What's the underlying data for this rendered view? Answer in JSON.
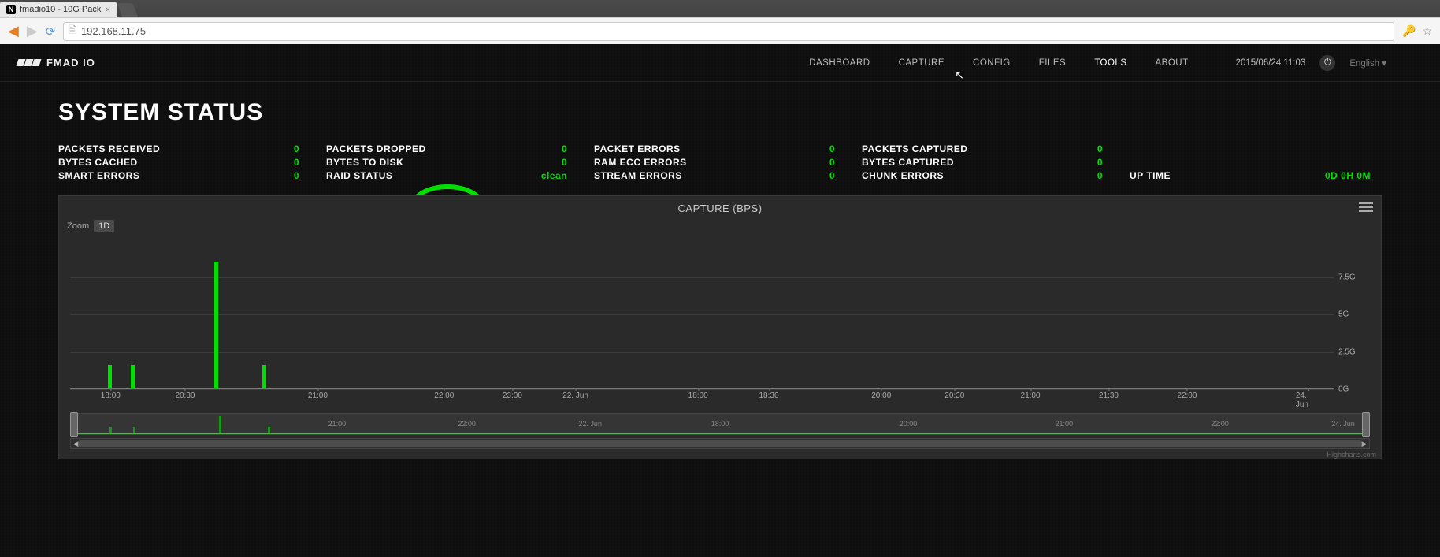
{
  "browser": {
    "tab_title": "fmadio10 - 10G Pack",
    "url": "192.168.11.75"
  },
  "brand": "FMAD IO",
  "nav": {
    "items": [
      "DASHBOARD",
      "CAPTURE",
      "CONFIG",
      "FILES",
      "TOOLS",
      "ABOUT"
    ],
    "active": "TOOLS"
  },
  "clock": "2015/06/24 11:03",
  "language": "English",
  "page_title": "SYSTEM STATUS",
  "stats_rows": [
    [
      {
        "label": "PACKETS RECEIVED",
        "value": "0"
      },
      {
        "label": "PACKETS DROPPED",
        "value": "0"
      },
      {
        "label": "PACKET ERRORS",
        "value": "0"
      },
      {
        "label": "PACKETS CAPTURED",
        "value": "0"
      },
      {
        "label": "",
        "value": ""
      }
    ],
    [
      {
        "label": "BYTES CACHED",
        "value": "0"
      },
      {
        "label": "BYTES TO DISK",
        "value": "0"
      },
      {
        "label": "RAM ECC ERRORS",
        "value": "0"
      },
      {
        "label": "BYTES CAPTURED",
        "value": "0"
      },
      {
        "label": "",
        "value": ""
      }
    ],
    [
      {
        "label": "SMART ERRORS",
        "value": "0"
      },
      {
        "label": "RAID STATUS",
        "value": "clean"
      },
      {
        "label": "STREAM ERRORS",
        "value": "0"
      },
      {
        "label": "CHUNK ERRORS",
        "value": "0"
      },
      {
        "label": "UP TIME",
        "value": "0D 0H 0M"
      }
    ]
  ],
  "chart": {
    "title": "CAPTURE (BPS)",
    "zoom_label": "Zoom",
    "zoom_selected": "1D",
    "ylim": [
      0,
      10
    ],
    "yticks": [
      {
        "v": 0,
        "label": "0G"
      },
      {
        "v": 2.5,
        "label": "2.5G"
      },
      {
        "v": 5,
        "label": "5G"
      },
      {
        "v": 7.5,
        "label": "7.5G"
      }
    ],
    "grid_color": "#3d3d3d",
    "baseline_color": "#7a6bcf",
    "bar_color": "#00e000",
    "background_color": "#2a2a2a",
    "bars": [
      {
        "x_pct": 3.0,
        "value": 1.6
      },
      {
        "x_pct": 4.8,
        "value": 1.6
      },
      {
        "x_pct": 11.4,
        "value": 8.5
      },
      {
        "x_pct": 15.2,
        "value": 1.6
      }
    ],
    "xticks": [
      {
        "pct": 3.2,
        "label": "18:00"
      },
      {
        "pct": 9.1,
        "label": "20:30"
      },
      {
        "pct": 19.6,
        "label": "21:00"
      },
      {
        "pct": 29.6,
        "label": "22:00"
      },
      {
        "pct": 35.0,
        "label": "23:00"
      },
      {
        "pct": 40.0,
        "label": "22. Jun"
      },
      {
        "pct": 49.7,
        "label": "18:00"
      },
      {
        "pct": 55.3,
        "label": "18:30"
      },
      {
        "pct": 64.2,
        "label": "20:00"
      },
      {
        "pct": 70.0,
        "label": "20:30"
      },
      {
        "pct": 76.0,
        "label": "21:00"
      },
      {
        "pct": 82.2,
        "label": "21:30"
      },
      {
        "pct": 88.4,
        "label": "22:00"
      },
      {
        "pct": 98.0,
        "label": "24. Jun"
      }
    ],
    "navigator": {
      "bars": [
        {
          "x_pct": 3.0,
          "h": 8
        },
        {
          "x_pct": 4.8,
          "h": 8
        },
        {
          "x_pct": 11.4,
          "h": 22
        },
        {
          "x_pct": 15.2,
          "h": 8
        }
      ],
      "xticks": [
        {
          "pct": 20.5,
          "label": "21:00"
        },
        {
          "pct": 30.5,
          "label": "22:00"
        },
        {
          "pct": 40.0,
          "label": "22. Jun"
        },
        {
          "pct": 50.0,
          "label": "18:00"
        },
        {
          "pct": 64.5,
          "label": "20:00"
        },
        {
          "pct": 76.5,
          "label": "21:00"
        },
        {
          "pct": 88.5,
          "label": "22:00"
        },
        {
          "pct": 98.0,
          "label": "24. Jun"
        }
      ]
    },
    "credit": "Highcharts.com"
  },
  "annotation": {
    "circle_target": "RAID STATUS"
  },
  "colors": {
    "accent": "#00e000",
    "bg_dark": "#0f0f0f",
    "panel": "#2a2a2a",
    "text": "#ffffff",
    "muted": "#bdbdbd"
  }
}
